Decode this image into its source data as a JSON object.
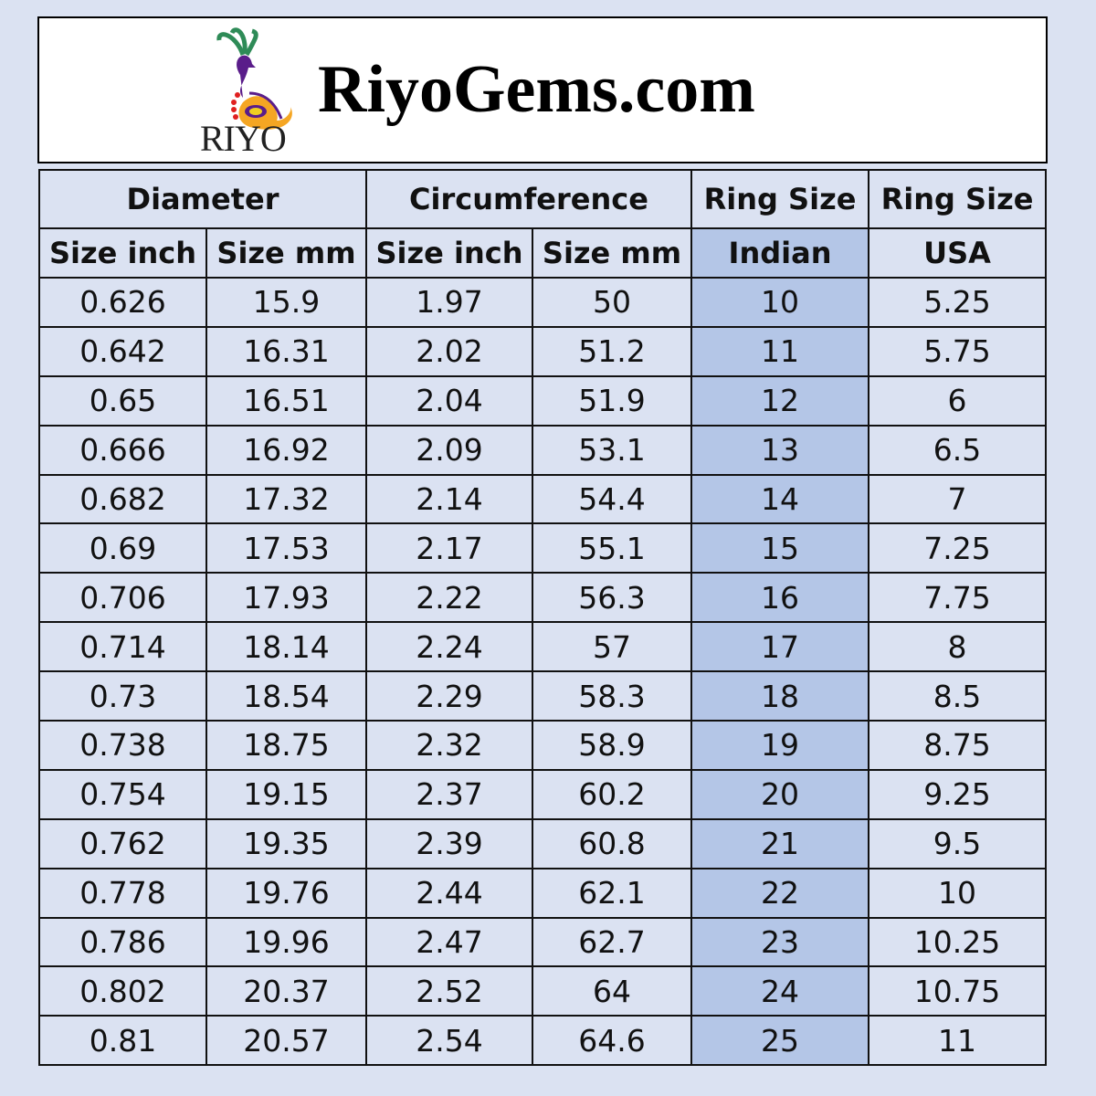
{
  "banner": {
    "logo_text": "RIYO",
    "site_title": "RiyoGems.com"
  },
  "colors": {
    "background": "#dbe2f2",
    "highlight_column": "#b4c6e7"
  },
  "table": {
    "group_headers": [
      "Diameter",
      "Circumference",
      "Ring Size",
      "Ring Size"
    ],
    "sub_headers": [
      "Size inch",
      "Size mm",
      "Size inch",
      "Size mm",
      "Indian",
      "USA"
    ],
    "rows": [
      [
        "0.626",
        "15.9",
        "1.97",
        "50",
        "10",
        "5.25"
      ],
      [
        "0.642",
        "16.31",
        "2.02",
        "51.2",
        "11",
        "5.75"
      ],
      [
        "0.65",
        "16.51",
        "2.04",
        "51.9",
        "12",
        "6"
      ],
      [
        "0.666",
        "16.92",
        "2.09",
        "53.1",
        "13",
        "6.5"
      ],
      [
        "0.682",
        "17.32",
        "2.14",
        "54.4",
        "14",
        "7"
      ],
      [
        "0.69",
        "17.53",
        "2.17",
        "55.1",
        "15",
        "7.25"
      ],
      [
        "0.706",
        "17.93",
        "2.22",
        "56.3",
        "16",
        "7.75"
      ],
      [
        "0.714",
        "18.14",
        "2.24",
        "57",
        "17",
        "8"
      ],
      [
        "0.73",
        "18.54",
        "2.29",
        "58.3",
        "18",
        "8.5"
      ],
      [
        "0.738",
        "18.75",
        "2.32",
        "58.9",
        "19",
        "8.75"
      ],
      [
        "0.754",
        "19.15",
        "2.37",
        "60.2",
        "20",
        "9.25"
      ],
      [
        "0.762",
        "19.35",
        "2.39",
        "60.8",
        "21",
        "9.5"
      ],
      [
        "0.778",
        "19.76",
        "2.44",
        "62.1",
        "22",
        "10"
      ],
      [
        "0.786",
        "19.96",
        "2.47",
        "62.7",
        "23",
        "10.25"
      ],
      [
        "0.802",
        "20.37",
        "2.52",
        "64",
        "24",
        "10.75"
      ],
      [
        "0.81",
        "20.57",
        "2.54",
        "64.6",
        "25",
        "11"
      ]
    ]
  }
}
